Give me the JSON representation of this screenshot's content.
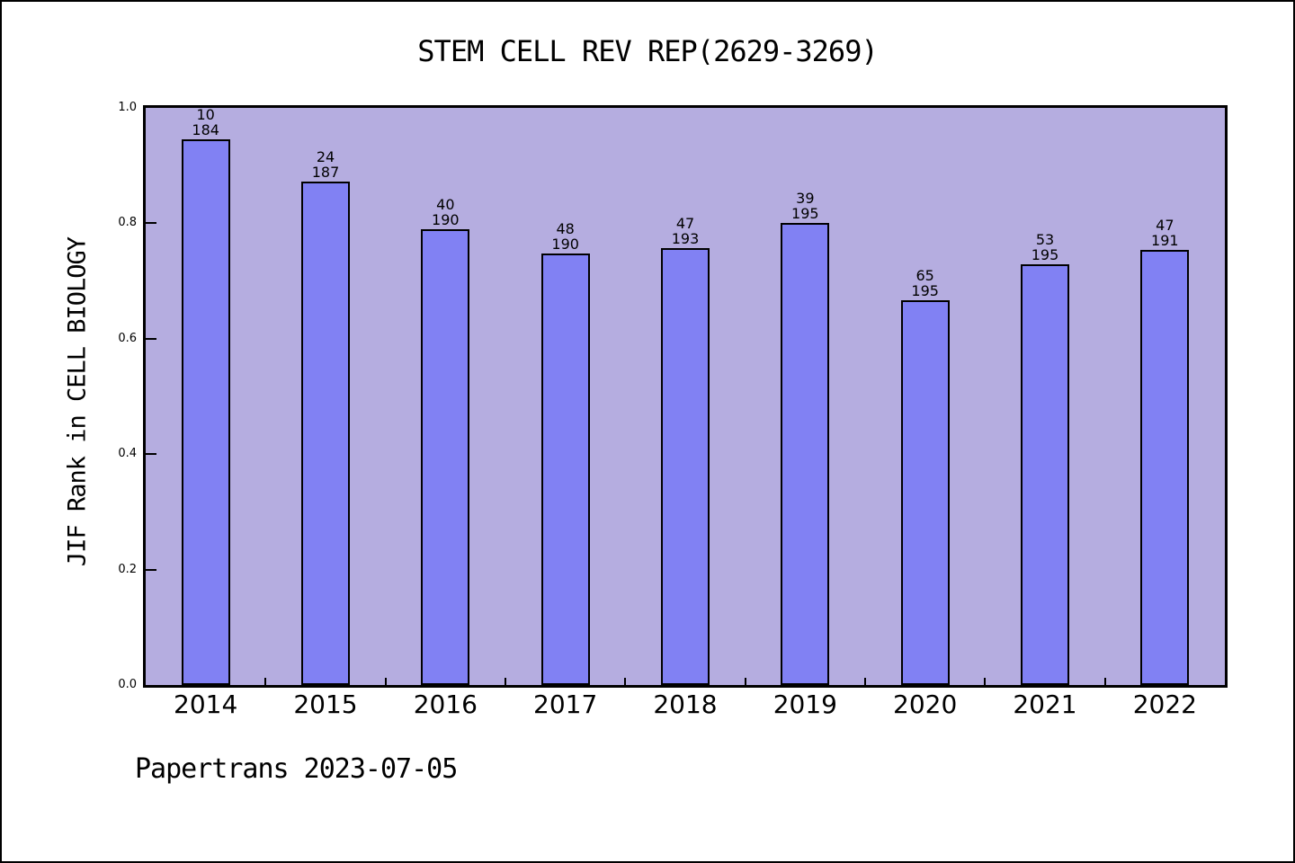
{
  "chart_data": {
    "type": "bar",
    "title": "STEM CELL REV REP(2629-3269)",
    "ylabel": "JIF Rank in CELL BIOLOGY",
    "xlabel": "",
    "categories": [
      "2014",
      "2015",
      "2016",
      "2017",
      "2018",
      "2019",
      "2020",
      "2021",
      "2022"
    ],
    "ranks": [
      10,
      24,
      40,
      48,
      47,
      39,
      65,
      53,
      47
    ],
    "totals": [
      184,
      187,
      190,
      190,
      193,
      195,
      195,
      195,
      191
    ],
    "values": [
      0.9457,
      0.8717,
      0.7895,
      0.7474,
      0.7565,
      0.8,
      0.6667,
      0.7282,
      0.7539
    ],
    "ylim": [
      0.0,
      1.0
    ],
    "y_ticks": [
      "0.0",
      "0.2",
      "0.4",
      "0.6",
      "0.8",
      "1.0"
    ],
    "grid": "off",
    "legend": "none",
    "bar_color": "#8181f3",
    "bar_edge_color": "#000000",
    "plot_bg_color": "#b5ade0",
    "outer_bg_color": "#ffffff"
  },
  "footer": {
    "text": "Papertrans 2023-07-05"
  }
}
